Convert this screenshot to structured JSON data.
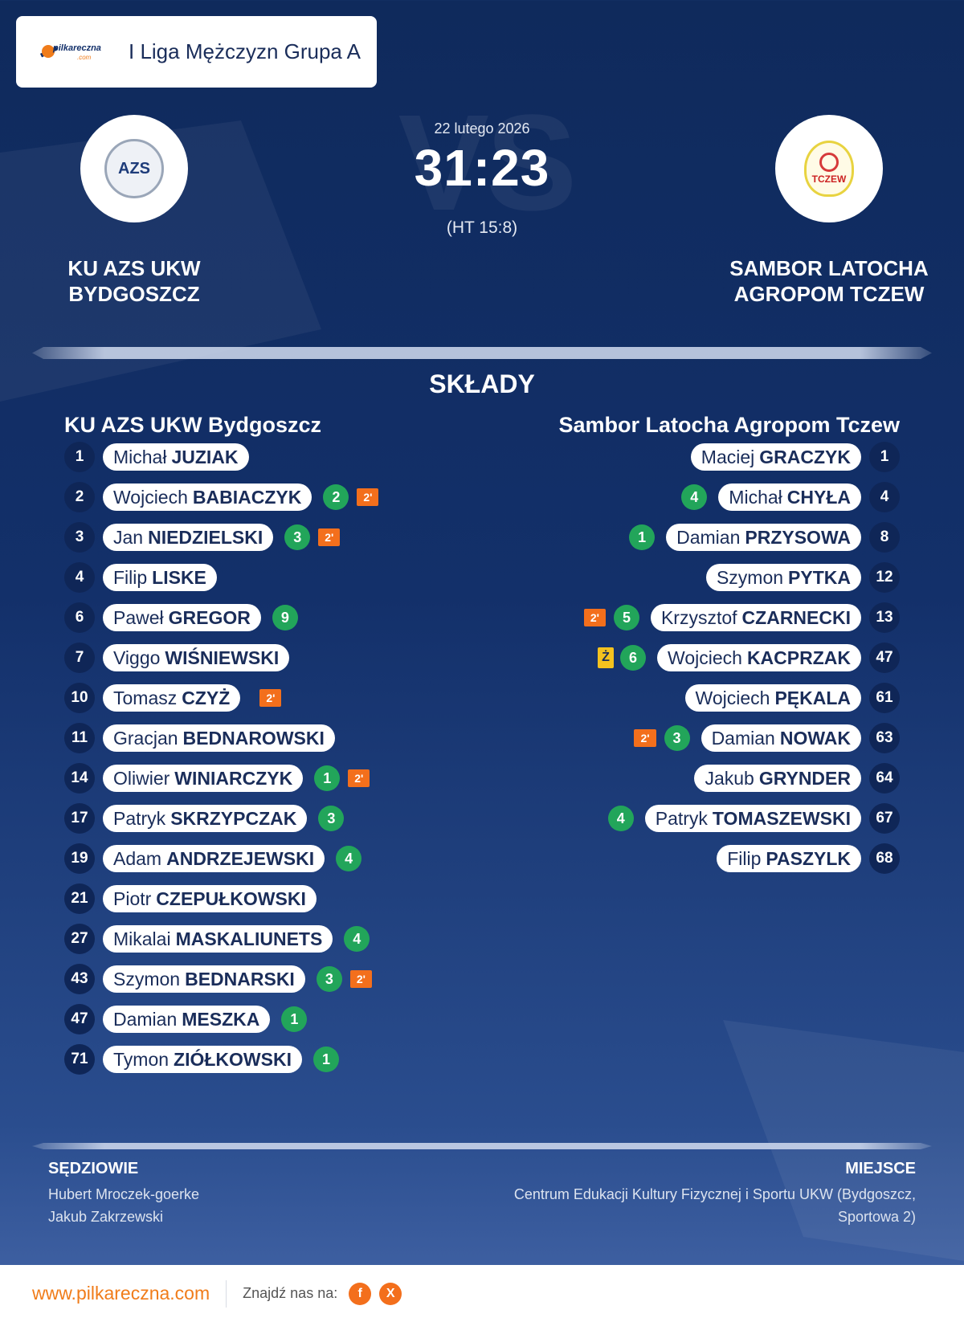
{
  "league": {
    "logo_text": "pilkareczna",
    "logo_sub": ".com",
    "title": "I Liga Mężczyzn Grupa A"
  },
  "match": {
    "date": "22 lutego 2026",
    "score": "31:23",
    "halftime": "(HT 15:8)",
    "vs_text": "VS",
    "home_name_line1": "KU AZS UKW",
    "home_name_line2": "BYDGOSZCZ",
    "away_name_line1": "SAMBOR LATOCHA",
    "away_name_line2": "AGROPOM TCZEW",
    "home_crest_text": "AZS",
    "away_crest_text": "TCZEW"
  },
  "lineups": {
    "title": "SKŁADY",
    "home_title": "KU AZS UKW Bydgoszcz",
    "away_title": "Sambor Latocha Agropom Tczew",
    "home": [
      {
        "number": "1",
        "first": "Michał",
        "last": "JUZIAK",
        "goals": "",
        "susp": "",
        "card": ""
      },
      {
        "number": "2",
        "first": "Wojciech",
        "last": "BABIACZYK",
        "goals": "2",
        "susp": "2'",
        "card": ""
      },
      {
        "number": "3",
        "first": "Jan",
        "last": "NIEDZIELSKI",
        "goals": "3",
        "susp": "2'",
        "card": ""
      },
      {
        "number": "4",
        "first": "Filip",
        "last": "LISKE",
        "goals": "",
        "susp": "",
        "card": ""
      },
      {
        "number": "6",
        "first": "Paweł",
        "last": "GREGOR",
        "goals": "9",
        "susp": "",
        "card": ""
      },
      {
        "number": "7",
        "first": "Viggo",
        "last": "WIŚNIEWSKI",
        "goals": "",
        "susp": "",
        "card": ""
      },
      {
        "number": "10",
        "first": "Tomasz",
        "last": "CZYŻ",
        "goals": "",
        "susp": "2'",
        "card": ""
      },
      {
        "number": "11",
        "first": "Gracjan",
        "last": "BEDNAROWSKI",
        "goals": "",
        "susp": "",
        "card": ""
      },
      {
        "number": "14",
        "first": "Oliwier",
        "last": "WINIARCZYK",
        "goals": "1",
        "susp": "2'",
        "card": ""
      },
      {
        "number": "17",
        "first": "Patryk",
        "last": "SKRZYPCZAK",
        "goals": "3",
        "susp": "",
        "card": ""
      },
      {
        "number": "19",
        "first": "Adam",
        "last": "ANDRZEJEWSKI",
        "goals": "4",
        "susp": "",
        "card": ""
      },
      {
        "number": "21",
        "first": "Piotr",
        "last": "CZEPUŁKOWSKI",
        "goals": "",
        "susp": "",
        "card": ""
      },
      {
        "number": "27",
        "first": "Mikalai",
        "last": "MASKALIUNETS",
        "goals": "4",
        "susp": "",
        "card": ""
      },
      {
        "number": "43",
        "first": "Szymon",
        "last": "BEDNARSKI",
        "goals": "3",
        "susp": "2'",
        "card": ""
      },
      {
        "number": "47",
        "first": "Damian",
        "last": "MESZKA",
        "goals": "1",
        "susp": "",
        "card": ""
      },
      {
        "number": "71",
        "first": "Tymon",
        "last": "ZIÓŁKOWSKI",
        "goals": "1",
        "susp": "",
        "card": ""
      }
    ],
    "away": [
      {
        "number": "1",
        "first": "Maciej",
        "last": "GRACZYK",
        "goals": "",
        "susp": "",
        "card": ""
      },
      {
        "number": "4",
        "first": "Michał",
        "last": "CHYŁA",
        "goals": "4",
        "susp": "",
        "card": ""
      },
      {
        "number": "8",
        "first": "Damian",
        "last": "PRZYSOWA",
        "goals": "1",
        "susp": "",
        "card": ""
      },
      {
        "number": "12",
        "first": "Szymon",
        "last": "PYTKA",
        "goals": "",
        "susp": "",
        "card": ""
      },
      {
        "number": "13",
        "first": "Krzysztof",
        "last": "CZARNECKI",
        "goals": "5",
        "susp": "2'",
        "card": ""
      },
      {
        "number": "47",
        "first": "Wojciech",
        "last": "KACPRZAK",
        "goals": "6",
        "susp": "",
        "card": "Ż"
      },
      {
        "number": "61",
        "first": "Wojciech",
        "last": "PĘKALA",
        "goals": "",
        "susp": "",
        "card": ""
      },
      {
        "number": "63",
        "first": "Damian",
        "last": "NOWAK",
        "goals": "3",
        "susp": "2'",
        "card": ""
      },
      {
        "number": "64",
        "first": "Jakub",
        "last": "GRYNDER",
        "goals": "",
        "susp": "",
        "card": ""
      },
      {
        "number": "67",
        "first": "Patryk",
        "last": "TOMASZEWSKI",
        "goals": "4",
        "susp": "",
        "card": ""
      },
      {
        "number": "68",
        "first": "Filip",
        "last": "PASZYLK",
        "goals": "",
        "susp": "",
        "card": ""
      }
    ]
  },
  "officials": {
    "referees_label": "SĘDZIOWIE",
    "referees": [
      "Hubert Mroczek-goerke",
      "Jakub Zakrzewski"
    ],
    "venue_label": "MIEJSCE",
    "venue_line1": "Centrum Edukacji Kultury Fizycznej i Sportu UKW (Bydgoszcz,",
    "venue_line2": "Sportowa 2)"
  },
  "footer": {
    "url": "www.pilkareczna.com",
    "find_us": "Znajdź nas na:",
    "social": [
      {
        "icon": "facebook-icon",
        "glyph": "f"
      },
      {
        "icon": "x-icon",
        "glyph": "X"
      }
    ]
  },
  "colors": {
    "accent": "#f36f1c",
    "goals": "#22a55a",
    "yellow_card": "#f4c21f",
    "navy": "#13306a"
  }
}
